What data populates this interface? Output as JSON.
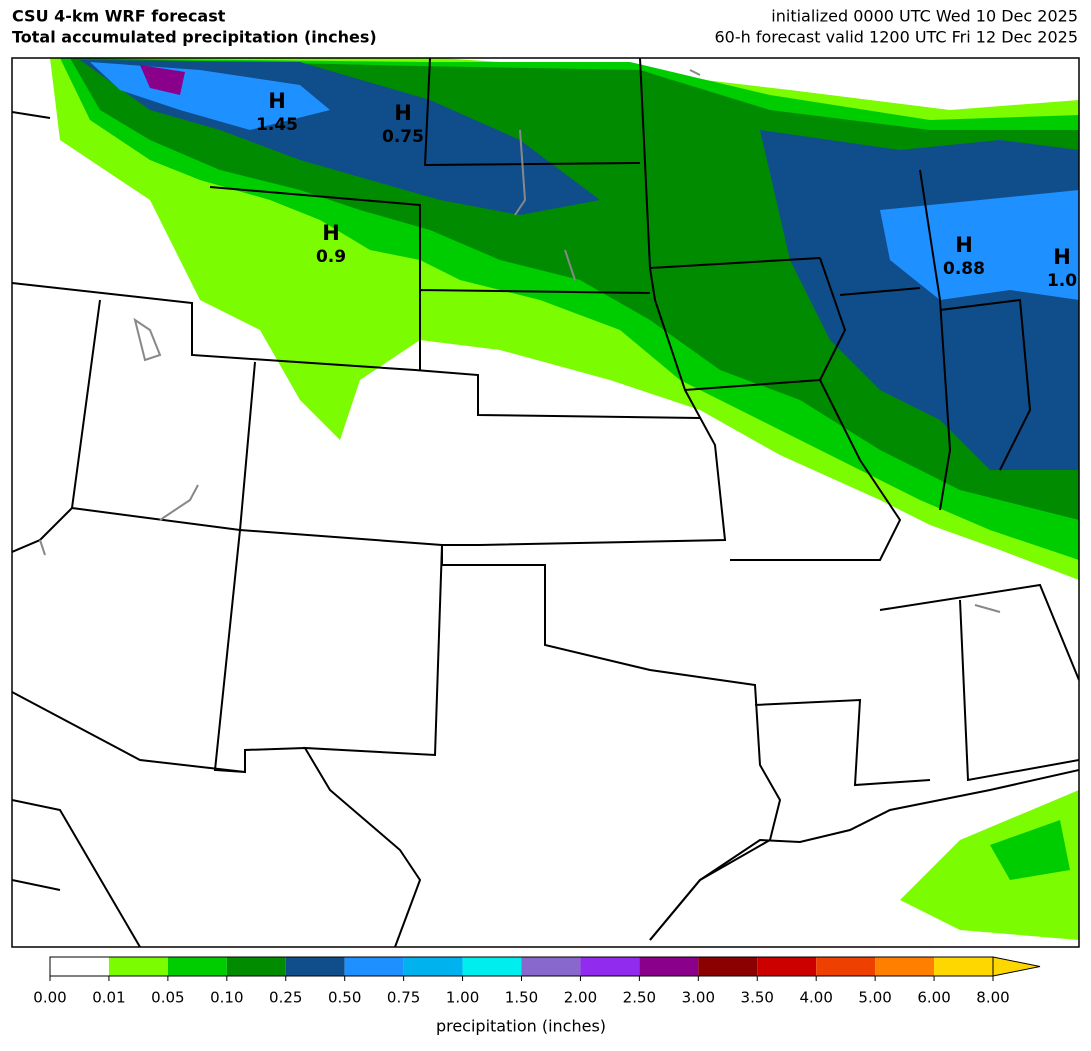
{
  "header": {
    "title": "CSU 4-km WRF forecast",
    "subtitle": "Total accumulated precipitation (inches)",
    "init": "initialized 0000 UTC Wed 10 Dec 2025",
    "valid": "60-h forecast valid 1200 UTC Fri 12 Dec 2025"
  },
  "highs": [
    {
      "letter": "H",
      "value": "1.45"
    },
    {
      "letter": "H",
      "value": "0.75"
    },
    {
      "letter": "H",
      "value": "0.9"
    },
    {
      "letter": "H",
      "value": "0.88"
    },
    {
      "letter": "H",
      "value": "1.0"
    }
  ],
  "colorbar": {
    "label": "precipitation (inches)",
    "ticks": [
      {
        "value": 0,
        "label": "0.00"
      },
      {
        "value": 0.01,
        "label": "0.01"
      },
      {
        "value": 0.05,
        "label": "0.05"
      },
      {
        "value": 0.1,
        "label": "0.10"
      },
      {
        "value": 0.25,
        "label": "0.25"
      },
      {
        "value": 0.5,
        "label": "0.50"
      },
      {
        "value": 0.75,
        "label": "0.75"
      },
      {
        "value": 1,
        "label": "1.00"
      },
      {
        "value": 1.5,
        "label": "1.50"
      },
      {
        "value": 2,
        "label": "2.00"
      },
      {
        "value": 2.5,
        "label": "2.50"
      },
      {
        "value": 3,
        "label": "3.00"
      },
      {
        "value": 3.5,
        "label": "3.50"
      },
      {
        "value": 4,
        "label": "4.00"
      },
      {
        "value": 5,
        "label": "5.00"
      },
      {
        "value": 6,
        "label": "6.00"
      },
      {
        "value": 8,
        "label": "8.00"
      }
    ],
    "colors": [
      "#ffffff",
      "#7cfc00",
      "#00cd00",
      "#008b00",
      "#104e8b",
      "#1e90ff",
      "#00b2ee",
      "#00eeee",
      "#8968cd",
      "#912cee",
      "#8b008b",
      "#8b0000",
      "#cd0000",
      "#ee4000",
      "#ff7f00",
      "#ffd700"
    ],
    "extend": "max"
  }
}
